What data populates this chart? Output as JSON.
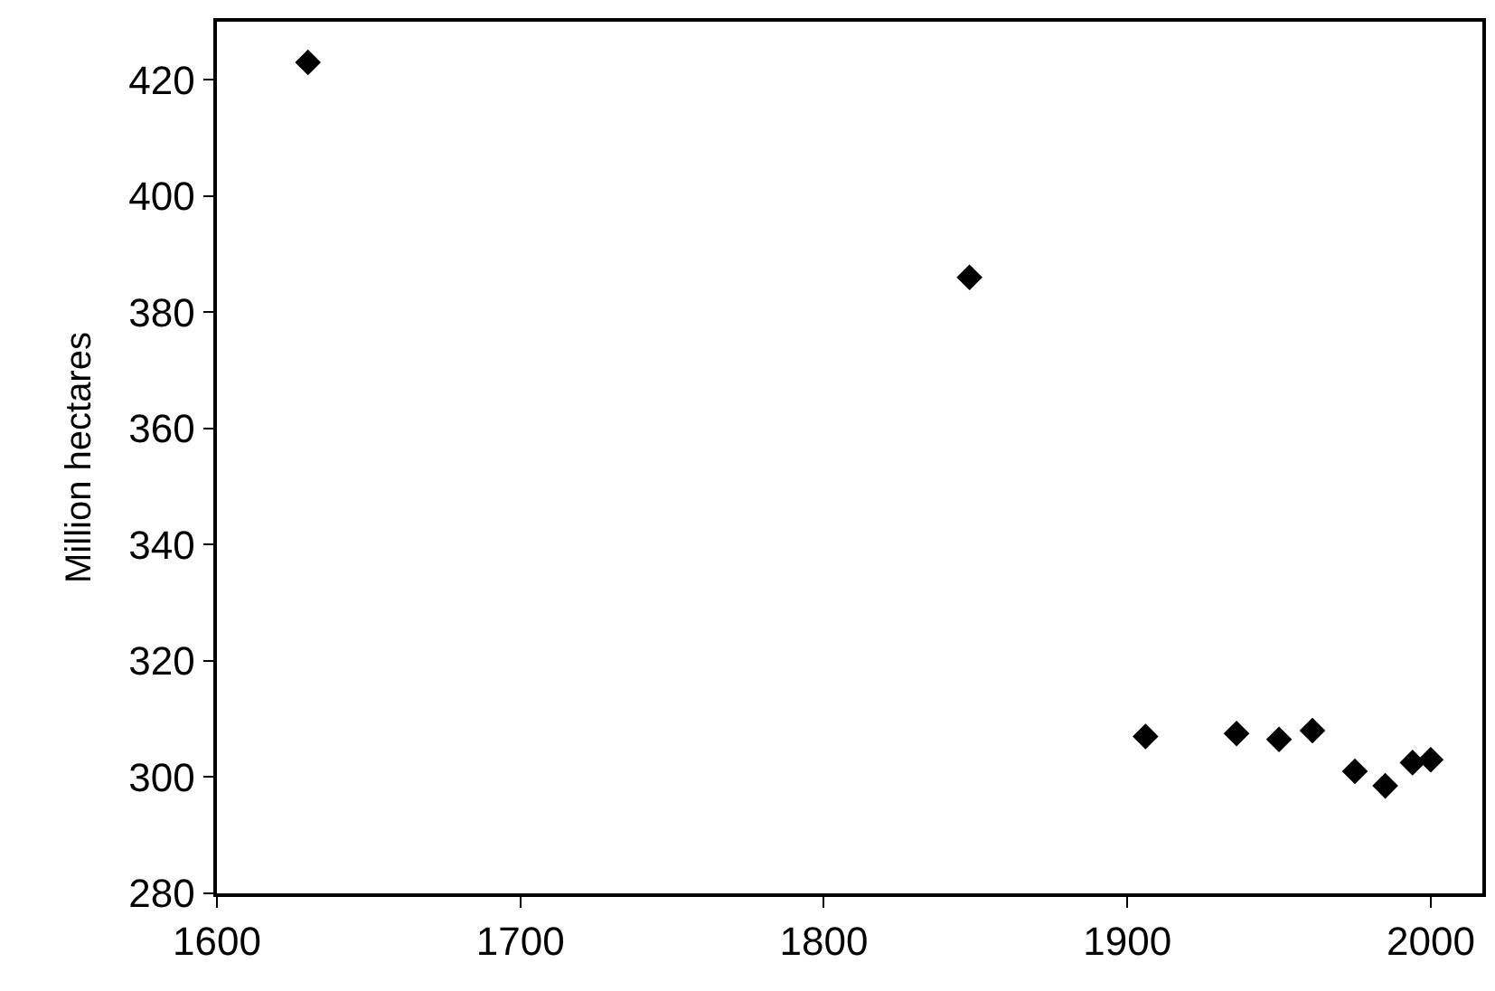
{
  "chart_data": {
    "type": "scatter",
    "ylabel": "Million hectares",
    "x": [
      1630,
      1848,
      1906,
      1936,
      1950,
      1961,
      1975,
      1985,
      1994,
      2000
    ],
    "series": [
      {
        "color": "#000000",
        "values": [
          423,
          386,
          307,
          307.5,
          306.5,
          308,
          301,
          298.5,
          302.5,
          303
        ]
      }
    ],
    "xlim": [
      1600,
      2017
    ],
    "xticks": [
      1600,
      1700,
      1800,
      1900,
      2000
    ],
    "ylim": [
      280,
      430
    ],
    "yticks": [
      280,
      300,
      320,
      340,
      360,
      380,
      400,
      420
    ],
    "marker": "diamond",
    "legend": false
  }
}
